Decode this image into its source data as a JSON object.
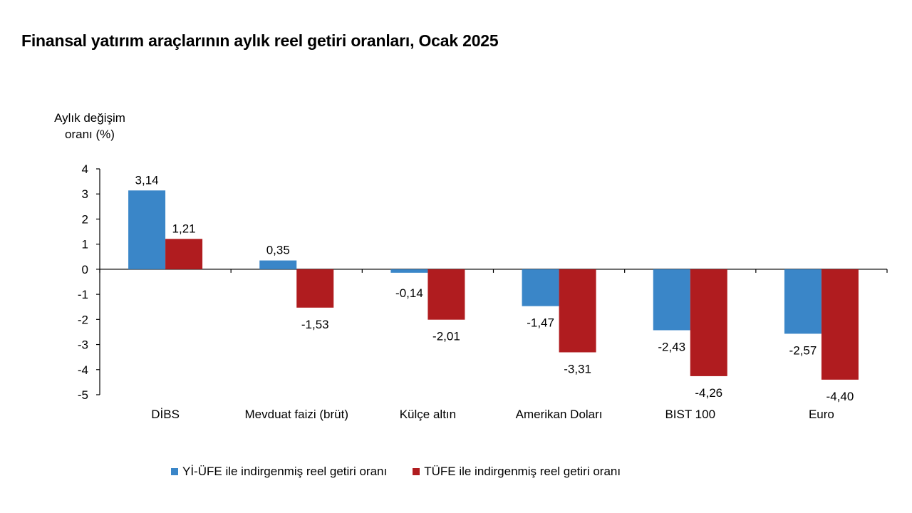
{
  "chart_data": {
    "type": "bar",
    "title": "Finansal yatırım araçlarının aylık reel getiri oranları, Ocak 2025",
    "ylabel": "Aylık değişim oranı (%)",
    "ylabel_lines": [
      "Aylık değişim",
      "oranı (%)"
    ],
    "xlabel": "",
    "ylim": [
      -5,
      4
    ],
    "yticks": [
      4,
      3,
      2,
      1,
      0,
      -1,
      -2,
      -3,
      -4,
      -5
    ],
    "grid": false,
    "legend_position": "bottom",
    "categories": [
      "DİBS",
      "Mevduat faizi (brüt)",
      "Külçe altın",
      "Amerikan Doları",
      "BIST 100",
      "Euro"
    ],
    "series": [
      {
        "name": "Yİ-ÜFE ile indirgenmiş reel getiri oranı",
        "color": "#3a86c8",
        "values": [
          3.14,
          0.35,
          -0.14,
          -1.47,
          -2.43,
          -2.57
        ],
        "labels": [
          "3,14",
          "0,35",
          "-0,14",
          "-1,47",
          "-2,43",
          "-2,57"
        ]
      },
      {
        "name": "TÜFE ile indirgenmiş reel getiri oranı",
        "color": "#b01c1f",
        "values": [
          1.21,
          -1.53,
          -2.01,
          -3.31,
          -4.26,
          -4.4
        ],
        "labels": [
          "1,21",
          "-1,53",
          "-2,01",
          "-3,31",
          "-4,26",
          "-4,40"
        ]
      }
    ]
  }
}
